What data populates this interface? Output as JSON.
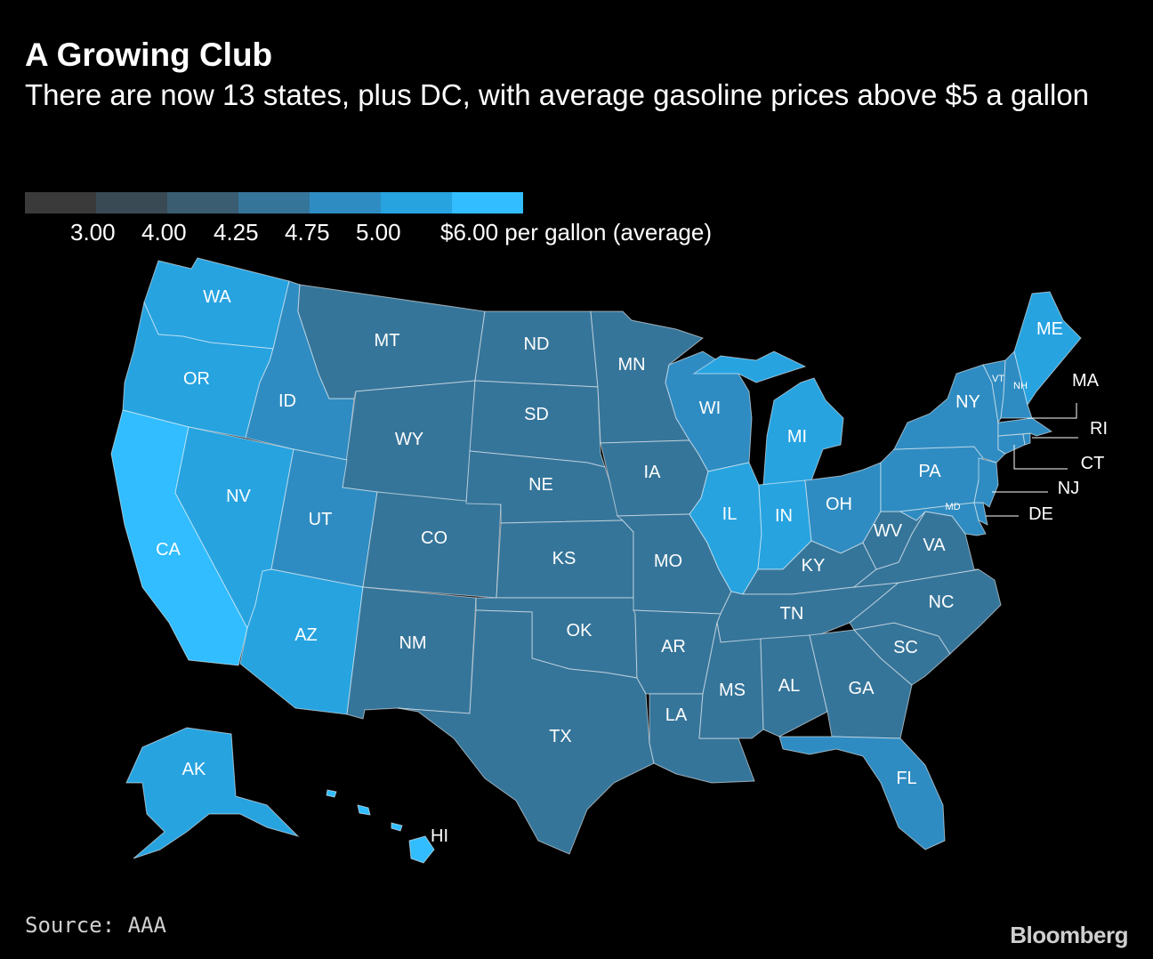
{
  "header": {
    "title": "A Growing Club",
    "subtitle": "There are now 13 states, plus DC, with average gasoline prices above $5 a gallon"
  },
  "legend": {
    "colors": [
      "#3a3a3a",
      "#3a4a55",
      "#3a5d72",
      "#36759a",
      "#2f8cc2",
      "#27a3e0",
      "#31bdff"
    ],
    "labels": [
      "3.00",
      "4.00",
      "4.25",
      "4.75",
      "5.00",
      "$6.00 per gallon (average)"
    ]
  },
  "colors": {
    "tier3": "#36759a",
    "tier4": "#2f8cc2",
    "tier5": "#27a3e0",
    "tier6": "#31bdff"
  },
  "map": {
    "states": [
      {
        "abbr": "WA",
        "tier": 5
      },
      {
        "abbr": "OR",
        "tier": 5
      },
      {
        "abbr": "CA",
        "tier": 6
      },
      {
        "abbr": "NV",
        "tier": 5
      },
      {
        "abbr": "ID",
        "tier": 4
      },
      {
        "abbr": "MT",
        "tier": 3
      },
      {
        "abbr": "WY",
        "tier": 3
      },
      {
        "abbr": "UT",
        "tier": 4
      },
      {
        "abbr": "AZ",
        "tier": 5
      },
      {
        "abbr": "CO",
        "tier": 3
      },
      {
        "abbr": "NM",
        "tier": 3
      },
      {
        "abbr": "ND",
        "tier": 3
      },
      {
        "abbr": "SD",
        "tier": 3
      },
      {
        "abbr": "NE",
        "tier": 3
      },
      {
        "abbr": "KS",
        "tier": 3
      },
      {
        "abbr": "OK",
        "tier": 3
      },
      {
        "abbr": "TX",
        "tier": 3
      },
      {
        "abbr": "MN",
        "tier": 3
      },
      {
        "abbr": "IA",
        "tier": 3
      },
      {
        "abbr": "MO",
        "tier": 3
      },
      {
        "abbr": "AR",
        "tier": 3
      },
      {
        "abbr": "LA",
        "tier": 3
      },
      {
        "abbr": "WI",
        "tier": 4
      },
      {
        "abbr": "IL",
        "tier": 5
      },
      {
        "abbr": "MI",
        "tier": 5
      },
      {
        "abbr": "IN",
        "tier": 5
      },
      {
        "abbr": "OH",
        "tier": 4
      },
      {
        "abbr": "KY",
        "tier": 3
      },
      {
        "abbr": "TN",
        "tier": 3
      },
      {
        "abbr": "MS",
        "tier": 3
      },
      {
        "abbr": "AL",
        "tier": 3
      },
      {
        "abbr": "GA",
        "tier": 3
      },
      {
        "abbr": "FL",
        "tier": 4
      },
      {
        "abbr": "SC",
        "tier": 3
      },
      {
        "abbr": "NC",
        "tier": 3
      },
      {
        "abbr": "VA",
        "tier": 3
      },
      {
        "abbr": "WV",
        "tier": 3
      },
      {
        "abbr": "PA",
        "tier": 4
      },
      {
        "abbr": "NY",
        "tier": 4
      },
      {
        "abbr": "VT",
        "tier": 4
      },
      {
        "abbr": "NH",
        "tier": 4
      },
      {
        "abbr": "ME",
        "tier": 5
      },
      {
        "abbr": "MA",
        "tier": 4
      },
      {
        "abbr": "RI",
        "tier": 4
      },
      {
        "abbr": "CT",
        "tier": 4
      },
      {
        "abbr": "NJ",
        "tier": 4
      },
      {
        "abbr": "DE",
        "tier": 4
      },
      {
        "abbr": "MD",
        "tier": 4
      },
      {
        "abbr": "AK",
        "tier": 5
      },
      {
        "abbr": "HI",
        "tier": 6
      }
    ]
  },
  "footer": {
    "source": "Source: AAA",
    "brand": "Bloomberg"
  }
}
